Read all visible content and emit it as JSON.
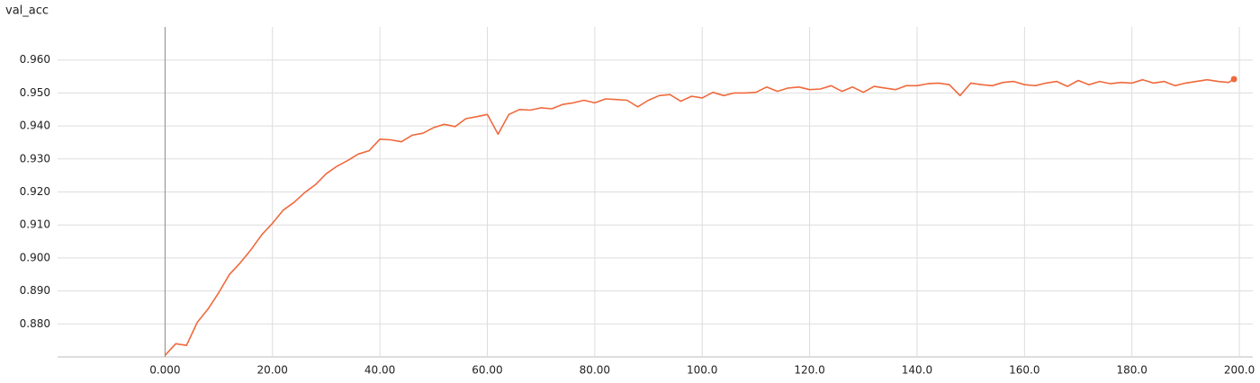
{
  "chart_data": {
    "type": "line",
    "title": "val_acc",
    "x": [
      0,
      2,
      4,
      6,
      8,
      10,
      12,
      14,
      16,
      18,
      20,
      22,
      24,
      26,
      28,
      30,
      32,
      34,
      36,
      38,
      40,
      42,
      44,
      46,
      48,
      50,
      52,
      54,
      56,
      58,
      60,
      62,
      64,
      66,
      68,
      70,
      72,
      74,
      76,
      78,
      80,
      82,
      84,
      86,
      88,
      90,
      92,
      94,
      96,
      98,
      100,
      102,
      104,
      106,
      108,
      110,
      112,
      114,
      116,
      118,
      120,
      122,
      124,
      126,
      128,
      130,
      132,
      134,
      136,
      138,
      140,
      142,
      144,
      146,
      148,
      150,
      152,
      154,
      156,
      158,
      160,
      162,
      164,
      166,
      168,
      170,
      172,
      174,
      176,
      178,
      180,
      182,
      184,
      186,
      188,
      190,
      192,
      194,
      196,
      198,
      199
    ],
    "series": [
      {
        "name": "val_acc",
        "color": "#f0693c",
        "values": [
          0.8705,
          0.874,
          0.8735,
          0.8805,
          0.8845,
          0.8895,
          0.895,
          0.8985,
          0.9025,
          0.907,
          0.9105,
          0.9145,
          0.9168,
          0.9198,
          0.9222,
          0.9255,
          0.9278,
          0.9295,
          0.9315,
          0.9325,
          0.936,
          0.9358,
          0.9352,
          0.9372,
          0.9378,
          0.9395,
          0.9405,
          0.9398,
          0.9422,
          0.9428,
          0.9435,
          0.9375,
          0.9435,
          0.945,
          0.9448,
          0.9455,
          0.9452,
          0.9465,
          0.947,
          0.9478,
          0.947,
          0.9482,
          0.948,
          0.9478,
          0.9458,
          0.9478,
          0.9492,
          0.9495,
          0.9475,
          0.949,
          0.9485,
          0.9502,
          0.9492,
          0.95,
          0.95,
          0.9502,
          0.9518,
          0.9505,
          0.9515,
          0.9518,
          0.951,
          0.9512,
          0.9522,
          0.9505,
          0.9518,
          0.9502,
          0.952,
          0.9515,
          0.951,
          0.9522,
          0.9522,
          0.9528,
          0.953,
          0.9525,
          0.9492,
          0.953,
          0.9525,
          0.9522,
          0.9532,
          0.9535,
          0.9525,
          0.9522,
          0.953,
          0.9535,
          0.952,
          0.9538,
          0.9525,
          0.9535,
          0.9528,
          0.9532,
          0.953,
          0.954,
          0.953,
          0.9535,
          0.9522,
          0.953,
          0.9535,
          0.954,
          0.9535,
          0.9532,
          0.9542
        ]
      }
    ],
    "xlim": [
      -20,
      202.5
    ],
    "ylim": [
      0.87,
      0.97
    ],
    "xticks": [
      {
        "value": 0,
        "label": "0.000"
      },
      {
        "value": 20,
        "label": "20.00"
      },
      {
        "value": 40,
        "label": "40.00"
      },
      {
        "value": 60,
        "label": "60.00"
      },
      {
        "value": 80,
        "label": "80.00"
      },
      {
        "value": 100,
        "label": "100.0"
      },
      {
        "value": 120,
        "label": "120.0"
      },
      {
        "value": 140,
        "label": "140.0"
      },
      {
        "value": 160,
        "label": "160.0"
      },
      {
        "value": 180,
        "label": "180.0"
      },
      {
        "value": 200,
        "label": "200.0"
      }
    ],
    "yticks": [
      {
        "value": 0.88,
        "label": "0.880"
      },
      {
        "value": 0.89,
        "label": "0.890"
      },
      {
        "value": 0.9,
        "label": "0.900"
      },
      {
        "value": 0.91,
        "label": "0.910"
      },
      {
        "value": 0.92,
        "label": "0.920"
      },
      {
        "value": 0.93,
        "label": "0.930"
      },
      {
        "value": 0.94,
        "label": "0.940"
      },
      {
        "value": 0.95,
        "label": "0.950"
      },
      {
        "value": 0.96,
        "label": "0.960"
      }
    ],
    "grid": true
  }
}
